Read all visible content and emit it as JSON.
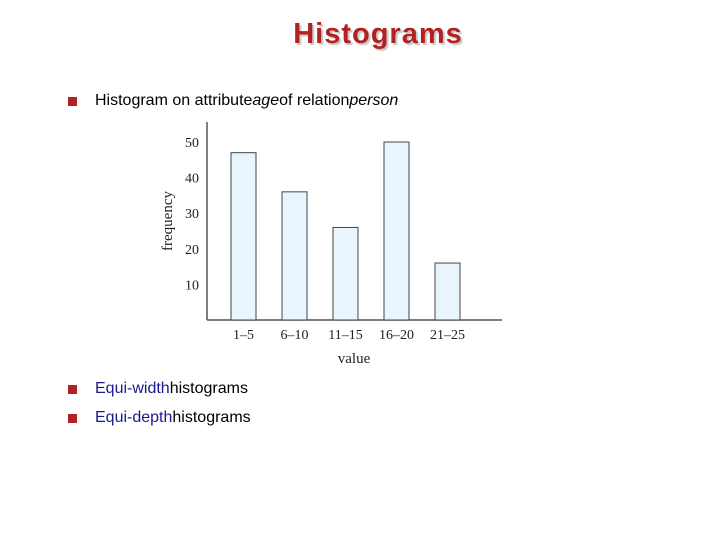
{
  "title": "Histograms",
  "bullets": {
    "b1": {
      "pre": "Histogram on attribute ",
      "attr": "age",
      "mid": " of relation ",
      "rel": "person"
    },
    "b2": {
      "kw": "Equi-width",
      "rest": " histograms"
    },
    "b3": {
      "kw": "Equi-depth",
      "rest": " histograms"
    }
  },
  "colors": {
    "accent": "#b22222",
    "keyword": "#1a1a8c",
    "bar_fill": "#e8f5fc",
    "bar_stroke": "#444444"
  },
  "chart_data": {
    "type": "bar",
    "categories": [
      "1–5",
      "6–10",
      "11–15",
      "16–20",
      "21–25"
    ],
    "values": [
      47,
      36,
      26,
      50,
      16
    ],
    "xlabel": "value",
    "ylabel": "frequency",
    "yticks": [
      10,
      20,
      30,
      40,
      50
    ],
    "ylim": [
      0,
      55
    ],
    "grid": false
  }
}
